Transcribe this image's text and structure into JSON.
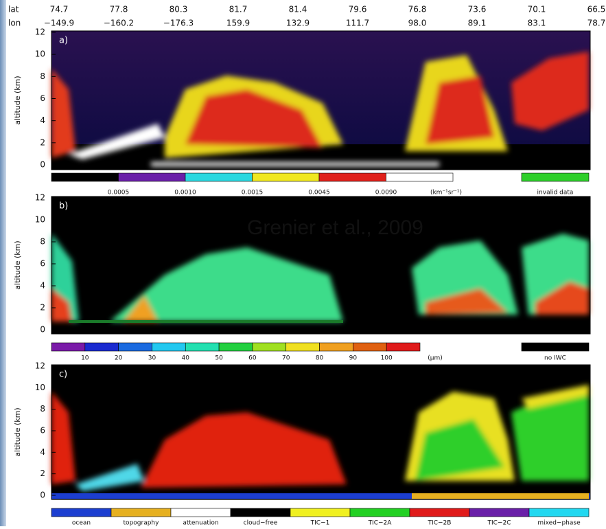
{
  "header": {
    "lat_label": "lat",
    "lon_label": "lon",
    "lat": [
      "74.7",
      "77.8",
      "80.3",
      "81.7",
      "81.4",
      "79.6",
      "76.8",
      "73.6",
      "70.1",
      "66.5"
    ],
    "lon": [
      "−149.9",
      "−160.2",
      "−176.3",
      "159.9",
      "132.9",
      "111.7",
      "98.0",
      "89.1",
      "83.1",
      "78.7"
    ]
  },
  "annotation": "Grenier et al., 2009",
  "panels": [
    {
      "label": "a)",
      "y_axis_label": "altitude (km)",
      "yticks": [
        "0",
        "2",
        "4",
        "6",
        "8",
        "10",
        "12"
      ],
      "colorbar": {
        "labels": [
          "0.0005",
          "0.0010",
          "0.0015",
          "0.0045",
          "0.0090",
          "(km⁻¹sr⁻¹)"
        ],
        "extra": "invalid data"
      }
    },
    {
      "label": "b)",
      "y_axis_label": "altitude (km)",
      "yticks": [
        "0",
        "2",
        "4",
        "6",
        "8",
        "10",
        "12"
      ],
      "colorbar": {
        "labels": [
          "10",
          "20",
          "30",
          "40",
          "50",
          "60",
          "70",
          "80",
          "90",
          "100",
          "(μm)"
        ],
        "extra": "no IWC"
      }
    },
    {
      "label": "c)",
      "y_axis_label": "altitude (km)",
      "yticks": [
        "0",
        "2",
        "4",
        "6",
        "8",
        "10",
        "12"
      ],
      "colorbar": {
        "labels": [
          "ocean",
          "topography",
          "attenuation",
          "cloud−free",
          "TIC−1",
          "TIC−2A",
          "TIC−2B",
          "TIC−2C",
          "mixed−phase"
        ]
      }
    }
  ]
}
